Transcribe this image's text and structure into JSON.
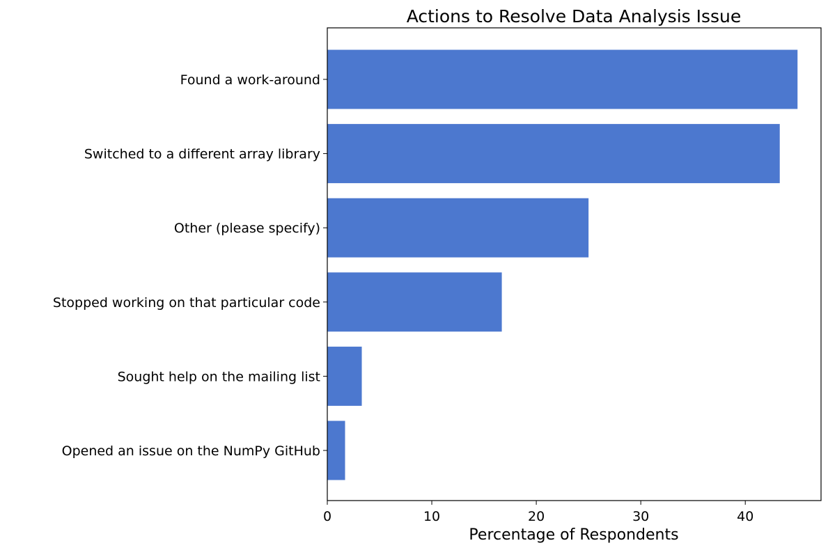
{
  "chart_data": {
    "type": "bar",
    "orientation": "horizontal",
    "title": "Actions to Resolve Data Analysis Issue",
    "xlabel": "Percentage of Respondents",
    "ylabel": "",
    "categories": [
      "Found a work-around",
      "Switched to a different array library",
      "Other (please specify)",
      "Stopped working on that particular code",
      "Sought help on the mailing list",
      "Opened an issue on the NumPy GitHub"
    ],
    "values": [
      45.0,
      43.3,
      25.0,
      16.7,
      3.3,
      1.7
    ],
    "xlim": [
      0,
      47.25
    ],
    "xticks": [
      0,
      10,
      20,
      30,
      40
    ],
    "bar_color": "#4c78cf",
    "grid": false,
    "legend": "none"
  }
}
